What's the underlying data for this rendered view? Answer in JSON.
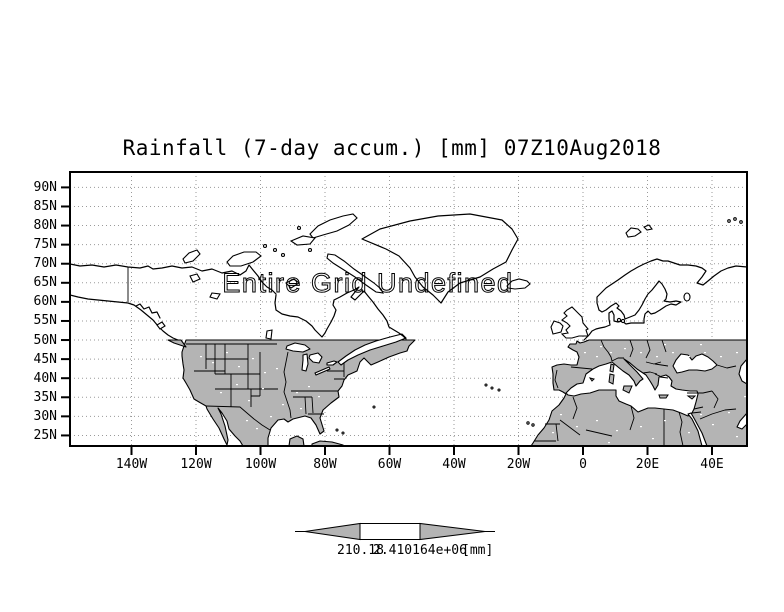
{
  "title": "Rainfall (7-day accum.) [mm] 07Z10Aug2018",
  "watermark": "Entire Grid Undefined",
  "y_axis": {
    "labels": [
      "90N",
      "85N",
      "80N",
      "75N",
      "70N",
      "65N",
      "60N",
      "55N",
      "50N",
      "45N",
      "40N",
      "35N",
      "30N",
      "25N"
    ]
  },
  "x_axis": {
    "labels": [
      "140W",
      "120W",
      "100W",
      "80W",
      "60W",
      "40W",
      "20W",
      "0",
      "20E",
      "40E"
    ]
  },
  "colorbar": {
    "min_label": "210.18",
    "max_label": "2.410164e+06",
    "units": "[mm]"
  },
  "colors": {
    "shade": "#b4b4b4",
    "grid_dots": "#9a9a9a",
    "outline": "#000000",
    "background": "#ffffff"
  },
  "chart_data": {
    "type": "heatmap",
    "title": "Rainfall (7-day accum.) [mm] 07Z10Aug2018",
    "variable": "Rainfall (7-day accum.)",
    "units": "[mm]",
    "valid_time": "07Z10Aug2018",
    "status": "Entire Grid Undefined",
    "values": null,
    "note": "No data values plotted; entire grid undefined. Land areas south of 50N are shaded gray; coastlines and political borders drawn in black.",
    "lat_ticks": [
      "90N",
      "85N",
      "80N",
      "75N",
      "70N",
      "65N",
      "60N",
      "55N",
      "50N",
      "45N",
      "40N",
      "35N",
      "30N",
      "25N"
    ],
    "lon_ticks": [
      "140W",
      "120W",
      "100W",
      "80W",
      "60W",
      "40W",
      "20W",
      "0",
      "20E",
      "40E"
    ],
    "lat_range_deg": [
      25,
      90
    ],
    "lon_range_deg": [
      -160,
      50
    ],
    "grid": "dotted graticule every 5 deg lat / 20 deg lon",
    "legend_position": "bottom-center horizontal colorbar with arrow ends",
    "colorbar_edge_labels": [
      "210.18",
      "2.410164e+06"
    ]
  }
}
